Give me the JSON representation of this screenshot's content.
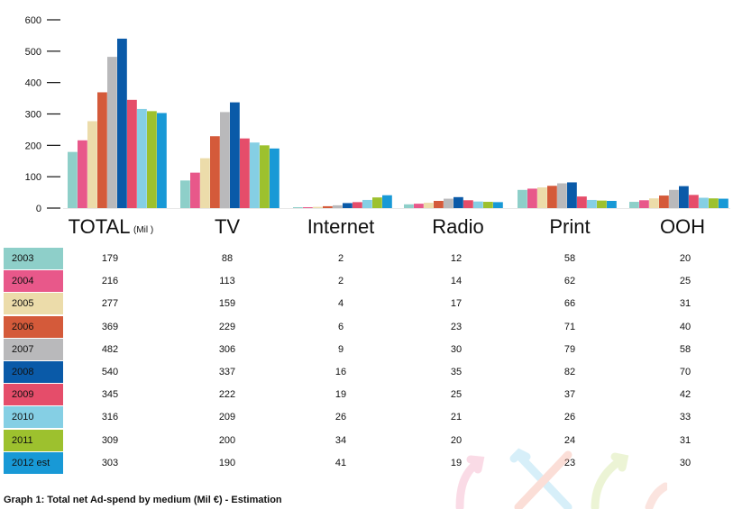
{
  "chart_data": {
    "type": "bar",
    "categories": [
      "TOTAL",
      "TV",
      "Internet",
      "Radio",
      "Print",
      "OOH"
    ],
    "category_unit_note": "(Mil    )",
    "ylim": [
      0,
      600
    ],
    "yticks": [
      "0",
      "100",
      "200",
      "300",
      "400",
      "500",
      "600"
    ],
    "series": [
      {
        "name": "2003",
        "color": "#8ecfc9",
        "values": [
          179,
          88,
          2,
          12,
          58,
          20
        ],
        "labels": [
          "179",
          "88",
          "2",
          "12",
          "58",
          "20"
        ]
      },
      {
        "name": "2004",
        "color": "#e8588a",
        "values": [
          216,
          113,
          2,
          14,
          62,
          25
        ],
        "labels": [
          "216",
          "113",
          "2",
          "14",
          "62",
          "25"
        ]
      },
      {
        "name": "2005",
        "color": "#ecdcaa",
        "values": [
          277,
          159,
          4,
          17,
          66,
          31
        ],
        "labels": [
          "277",
          "159",
          "4",
          "17",
          "66",
          "31"
        ]
      },
      {
        "name": "2006",
        "color": "#d45a3a",
        "values": [
          369,
          229,
          6,
          23,
          71,
          40
        ],
        "labels": [
          "369",
          "229",
          "6",
          "23",
          "71",
          "40"
        ]
      },
      {
        "name": "2007",
        "color": "#b9b9bb",
        "values": [
          482,
          306,
          9,
          30,
          79,
          58
        ],
        "labels": [
          "482",
          "306",
          "9",
          "30",
          "79",
          "58"
        ]
      },
      {
        "name": "2008",
        "color": "#0a5aa8",
        "values": [
          540,
          337,
          16,
          35,
          82,
          70
        ],
        "labels": [
          "540",
          "337",
          "16",
          "35",
          "82",
          "70"
        ]
      },
      {
        "name": "2009",
        "color": "#e54d6a",
        "values": [
          345,
          222,
          19,
          25,
          37,
          42
        ],
        "labels": [
          "345",
          "222",
          "19",
          "25",
          "37",
          "42"
        ]
      },
      {
        "name": "2010",
        "color": "#85cfe4",
        "values": [
          316,
          209,
          26,
          21,
          26,
          33
        ],
        "labels": [
          "316",
          "209",
          "26",
          "21",
          "26",
          "33"
        ]
      },
      {
        "name": "2011",
        "color": "#9dc12e",
        "values": [
          309,
          200,
          34,
          20,
          24,
          31
        ],
        "labels": [
          "309",
          "200",
          "34",
          "20",
          "24",
          "31"
        ]
      },
      {
        "name": "2012 est",
        "color": "#1899d6",
        "values": [
          303,
          190,
          41,
          19,
          23,
          30
        ],
        "labels": [
          "303",
          "190",
          "41",
          "19",
          "23",
          "30"
        ]
      }
    ],
    "caption": "Graph 1: Total net Ad-spend by medium (Mil €) - Estimation"
  }
}
